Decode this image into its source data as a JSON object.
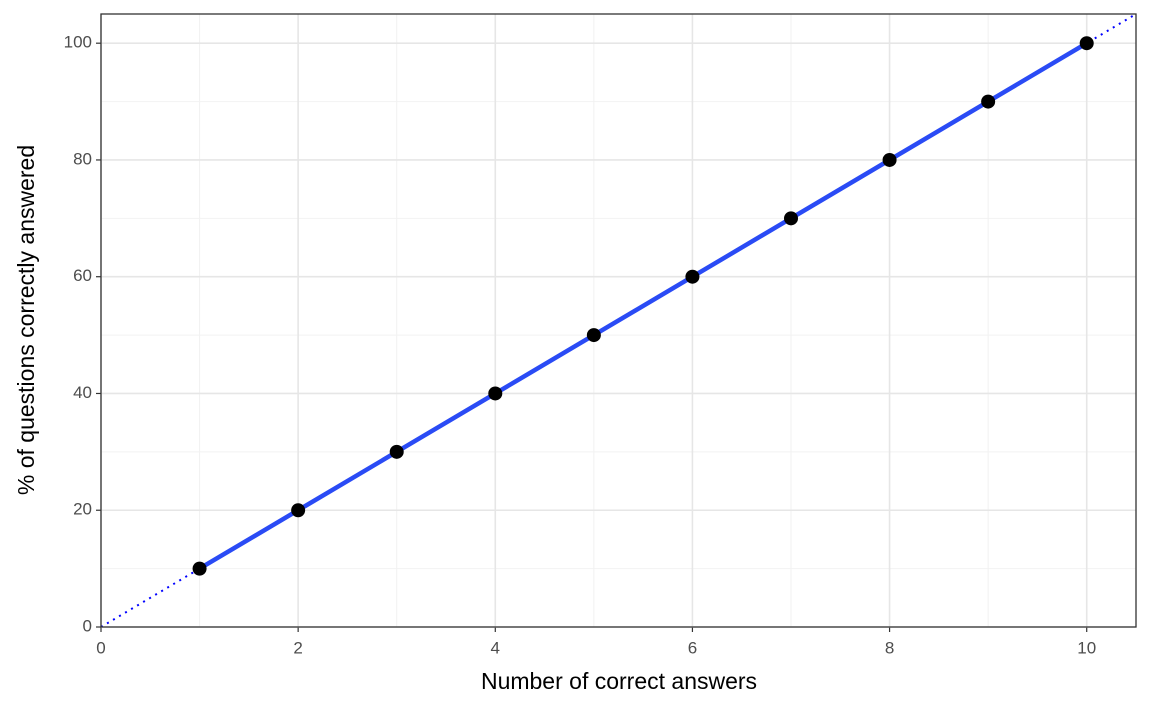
{
  "chart_data": {
    "type": "line",
    "x_label": "Number of correct answers",
    "y_label": "% of questions correctly answered",
    "x": [
      1,
      2,
      3,
      4,
      5,
      6,
      7,
      8,
      9,
      10
    ],
    "series": [
      {
        "color": "#2a4bf5",
        "point_color": "#000000",
        "values": [
          10,
          20,
          30,
          40,
          50,
          60,
          70,
          80,
          90,
          100
        ]
      }
    ],
    "reference_line": {
      "slope": 10,
      "intercept": 0,
      "color": "#0000ff",
      "style": "dotted"
    },
    "xlim": [
      0,
      10.5
    ],
    "ylim": [
      0,
      105
    ],
    "xticks": [
      0,
      2,
      4,
      6,
      8,
      10
    ],
    "yticks": [
      0,
      20,
      40,
      60,
      80,
      100
    ],
    "grid": true
  }
}
